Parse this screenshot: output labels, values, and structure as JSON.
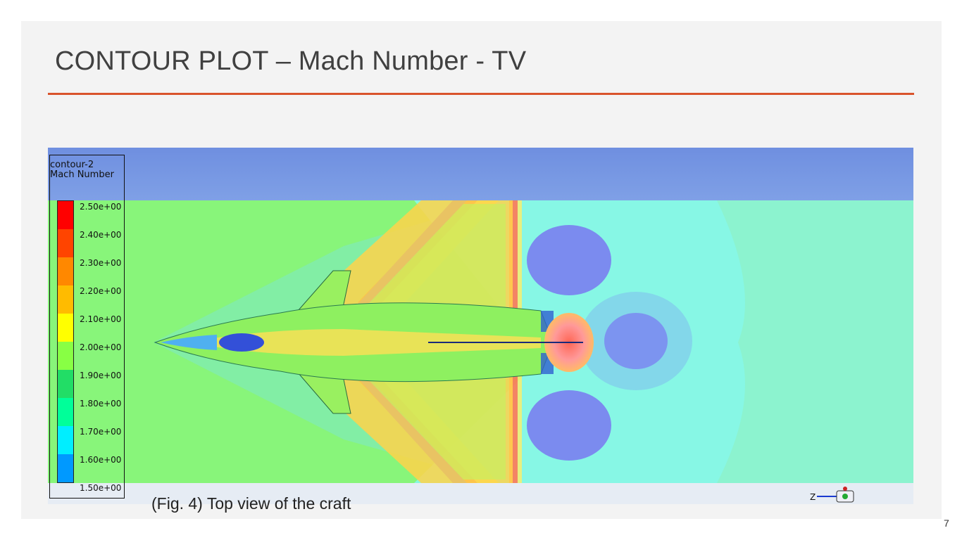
{
  "slide": {
    "title": "CONTOUR PLOT – Mach Number - TV",
    "caption": "(Fig. 4) Top view of the craft",
    "page_number": "7"
  },
  "contour": {
    "name": "contour-2",
    "variable": "Mach Number",
    "levels": [
      "2.50e+00",
      "2.40e+00",
      "2.30e+00",
      "2.20e+00",
      "2.10e+00",
      "2.00e+00",
      "1.90e+00",
      "1.80e+00",
      "1.70e+00",
      "1.60e+00",
      "1.50e+00"
    ],
    "colors": [
      "#ff0000",
      "#ff4400",
      "#ff8800",
      "#ffbb00",
      "#ffff00",
      "#88ff44",
      "#22dd66",
      "#00ff99",
      "#00eeff",
      "#0099ff",
      "#0022cc"
    ],
    "axis_label": "Z"
  }
}
